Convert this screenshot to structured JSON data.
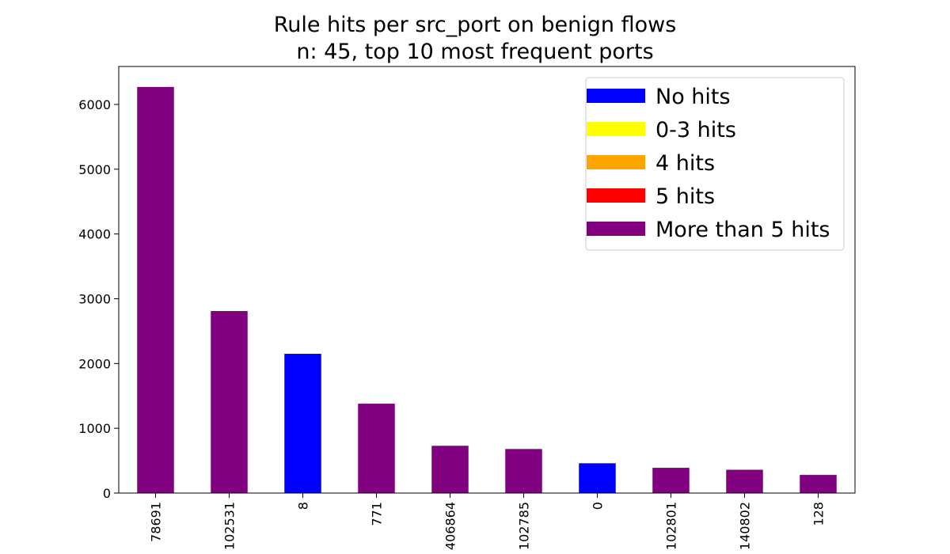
{
  "chart_data": {
    "type": "bar",
    "title": "Rule hits per src_port on benign flows",
    "subtitle": "n: 45, top 10 most frequent ports",
    "xlabel": "",
    "ylabel": "",
    "categories": [
      "78691",
      "102531",
      "8",
      "771",
      "406864",
      "102785",
      "0",
      "102801",
      "140802",
      "128"
    ],
    "values": [
      6270,
      2810,
      2150,
      1380,
      730,
      680,
      460,
      390,
      360,
      280
    ],
    "bar_classes": [
      "More than 5 hits",
      "More than 5 hits",
      "No hits",
      "More than 5 hits",
      "More than 5 hits",
      "More than 5 hits",
      "No hits",
      "More than 5 hits",
      "More than 5 hits",
      "More than 5 hits"
    ],
    "ylim": [
      0,
      6586
    ],
    "yticks": [
      0,
      1000,
      2000,
      3000,
      4000,
      5000,
      6000
    ],
    "grid": false,
    "legend_position": "top-right",
    "legend": [
      {
        "label": "No hits",
        "color": "#0000ff"
      },
      {
        "label": "0-3 hits",
        "color": "#ffff00"
      },
      {
        "label": "4 hits",
        "color": "#ffa500"
      },
      {
        "label": "5 hits",
        "color": "#ff0000"
      },
      {
        "label": "More than 5 hits",
        "color": "#800080"
      }
    ]
  }
}
